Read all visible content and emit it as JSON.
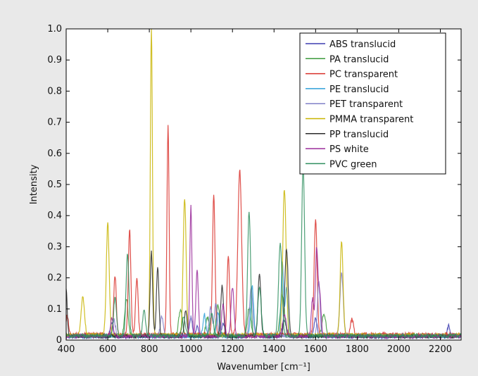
{
  "chart_data": {
    "type": "line",
    "xlabel": "Wavenumber [cm⁻¹]",
    "ylabel": "Intensity",
    "xlim": [
      400,
      2300
    ],
    "ylim": [
      0,
      1.0
    ],
    "x_ticks": [
      400,
      600,
      800,
      1000,
      1200,
      1400,
      1600,
      1800,
      2000,
      2200
    ],
    "x_tick_labels": [
      "400",
      "600",
      "800",
      "1000",
      "1200",
      "1400",
      "1600",
      "1800",
      "2000",
      "2200"
    ],
    "y_ticks": [
      0,
      0.1,
      0.2,
      0.3,
      0.4,
      0.5,
      0.6,
      0.7,
      0.8,
      0.9,
      1.0
    ],
    "y_tick_labels": [
      "0",
      "0.1",
      "0.2",
      "0.3",
      "0.4",
      "0.5",
      "0.6",
      "0.7",
      "0.8",
      "0.9",
      "1.0"
    ],
    "grid": false,
    "legend_position": "top-right",
    "series": [
      {
        "name": "ABS translucid",
        "color": "#3d3db0",
        "baseline": 0.012,
        "peaks": [
          [
            620,
            0.04,
            8
          ],
          [
            1000,
            0.06,
            7
          ],
          [
            1030,
            0.03,
            6
          ],
          [
            1155,
            0.04,
            8
          ],
          [
            1450,
            0.05,
            10
          ],
          [
            1600,
            0.06,
            7
          ],
          [
            2240,
            0.035,
            6
          ]
        ]
      },
      {
        "name": "PA translucid",
        "color": "#3c9a3c",
        "baseline": 0.014,
        "peaks": [
          [
            690,
            0.12,
            8
          ],
          [
            950,
            0.08,
            9
          ],
          [
            1080,
            0.06,
            8
          ],
          [
            1130,
            0.1,
            8
          ],
          [
            1280,
            0.09,
            8
          ],
          [
            1440,
            0.13,
            10
          ],
          [
            1640,
            0.07,
            9
          ]
        ]
      },
      {
        "name": "PC transparent",
        "color": "#d9302a",
        "baseline": 0.018,
        "peaks": [
          [
            405,
            0.06,
            6
          ],
          [
            635,
            0.19,
            6
          ],
          [
            705,
            0.34,
            6
          ],
          [
            740,
            0.18,
            6
          ],
          [
            890,
            0.67,
            5
          ],
          [
            1110,
            0.45,
            6
          ],
          [
            1180,
            0.25,
            6
          ],
          [
            1235,
            0.53,
            9
          ],
          [
            1600,
            0.37,
            7
          ],
          [
            1775,
            0.05,
            7
          ]
        ]
      },
      {
        "name": "PE translucid",
        "color": "#2e9fd8",
        "baseline": 0.012,
        "peaks": [
          [
            1065,
            0.07,
            7
          ],
          [
            1130,
            0.08,
            7
          ],
          [
            1295,
            0.16,
            7
          ],
          [
            1440,
            0.24,
            6
          ],
          [
            1460,
            0.16,
            6
          ]
        ]
      },
      {
        "name": "PET transparent",
        "color": "#8080c8",
        "baseline": 0.014,
        "peaks": [
          [
            630,
            0.05,
            7
          ],
          [
            860,
            0.06,
            7
          ],
          [
            1000,
            0.06,
            6
          ],
          [
            1095,
            0.09,
            7
          ],
          [
            1120,
            0.1,
            7
          ],
          [
            1290,
            0.15,
            8
          ],
          [
            1615,
            0.18,
            6
          ],
          [
            1725,
            0.2,
            8
          ]
        ]
      },
      {
        "name": "PMMA transparent",
        "color": "#c8b400",
        "baseline": 0.016,
        "peaks": [
          [
            480,
            0.12,
            8
          ],
          [
            600,
            0.36,
            7
          ],
          [
            810,
            1.0,
            5
          ],
          [
            970,
            0.44,
            7
          ],
          [
            1450,
            0.47,
            8
          ],
          [
            1725,
            0.3,
            7
          ]
        ]
      },
      {
        "name": "PP translucid",
        "color": "#2b2b2b",
        "baseline": 0.012,
        "peaks": [
          [
            400,
            0.15,
            5
          ],
          [
            810,
            0.27,
            6
          ],
          [
            840,
            0.22,
            6
          ],
          [
            975,
            0.08,
            7
          ],
          [
            1150,
            0.16,
            7
          ],
          [
            1330,
            0.2,
            7
          ],
          [
            1460,
            0.28,
            8
          ]
        ]
      },
      {
        "name": "PS white",
        "color": "#9a2c9a",
        "baseline": 0.012,
        "peaks": [
          [
            620,
            0.06,
            6
          ],
          [
            1000,
            0.42,
            5
          ],
          [
            1030,
            0.21,
            6
          ],
          [
            1155,
            0.1,
            7
          ],
          [
            1200,
            0.16,
            7
          ],
          [
            1450,
            0.07,
            9
          ],
          [
            1585,
            0.12,
            6
          ],
          [
            1605,
            0.28,
            6
          ],
          [
            1620,
            0.14,
            6
          ]
        ]
      },
      {
        "name": "PVC green",
        "color": "#2f8f5f",
        "baseline": 0.014,
        "peaks": [
          [
            635,
            0.12,
            7
          ],
          [
            695,
            0.26,
            7
          ],
          [
            775,
            0.08,
            7
          ],
          [
            965,
            0.06,
            8
          ],
          [
            1100,
            0.07,
            8
          ],
          [
            1280,
            0.4,
            7
          ],
          [
            1330,
            0.16,
            8
          ],
          [
            1430,
            0.3,
            8
          ],
          [
            1540,
            0.55,
            7
          ]
        ]
      }
    ]
  }
}
